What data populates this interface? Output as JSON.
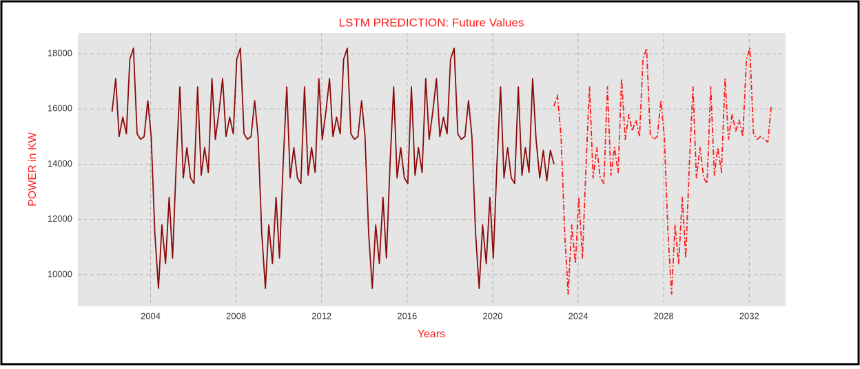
{
  "chart_data": {
    "type": "line",
    "title": "LSTM PREDICTION: Future Values",
    "x_label": "Years",
    "y_label": "POWER in KW",
    "xlim": [
      2000.6,
      2033.7
    ],
    "xticks": [
      2004,
      2008,
      2012,
      2016,
      2020,
      2024,
      2028,
      2032
    ],
    "ylim": [
      8850,
      18750
    ],
    "yticks": [
      10000,
      12000,
      14000,
      16000,
      18000
    ],
    "grid": true,
    "series": [
      {
        "color": "#8b0a0a",
        "dash": "solid",
        "x": [
          2002.2,
          2002.37,
          2002.53,
          2002.7,
          2002.87,
          2003.03,
          2003.2,
          2003.37,
          2003.53,
          2003.7,
          2003.87,
          2004.03,
          2004.2,
          2004.37,
          2004.53,
          2004.7,
          2004.87,
          2005.03,
          2005.2,
          2005.37,
          2005.53,
          2005.7,
          2005.87,
          2006.03,
          2006.2,
          2006.37,
          2006.53,
          2006.7,
          2006.87,
          2007.03,
          2007.2,
          2007.37,
          2007.53,
          2007.7,
          2007.87,
          2008.03,
          2008.2,
          2008.37,
          2008.53,
          2008.7,
          2008.87,
          2009.03,
          2009.2,
          2009.37,
          2009.53,
          2009.7,
          2009.87,
          2010.03,
          2010.2,
          2010.37,
          2010.53,
          2010.7,
          2010.87,
          2011.03,
          2011.2,
          2011.37,
          2011.53,
          2011.7,
          2011.87,
          2012.03,
          2012.2,
          2012.37,
          2012.53,
          2012.7,
          2012.87,
          2013.03,
          2013.2,
          2013.37,
          2013.53,
          2013.7,
          2013.87,
          2014.03,
          2014.2,
          2014.37,
          2014.53,
          2014.7,
          2014.87,
          2015.03,
          2015.2,
          2015.37,
          2015.53,
          2015.7,
          2015.87,
          2016.03,
          2016.2,
          2016.37,
          2016.53,
          2016.7,
          2016.87,
          2017.03,
          2017.2,
          2017.37,
          2017.53,
          2017.7,
          2017.87,
          2018.03,
          2018.2,
          2018.37,
          2018.53,
          2018.7,
          2018.87,
          2019.03,
          2019.2,
          2019.37,
          2019.53,
          2019.7,
          2019.87,
          2020.03,
          2020.2,
          2020.37,
          2020.53,
          2020.7,
          2020.87,
          2021.03,
          2021.2,
          2021.37,
          2021.53,
          2021.7,
          2021.87,
          2022.03,
          2022.2,
          2022.37,
          2022.53,
          2022.7,
          2022.87
        ],
        "values": [
          15900,
          17100,
          15000,
          15700,
          15100,
          17800,
          18200,
          15100,
          14900,
          15000,
          16300,
          15000,
          11500,
          9500,
          11800,
          10400,
          12800,
          10600,
          14000,
          16800,
          13500,
          14600,
          13500,
          13300,
          16800,
          13600,
          14600,
          13700,
          17100,
          14900,
          15900,
          17100,
          15000,
          15700,
          15100,
          17800,
          18200,
          15100,
          14900,
          15000,
          16300,
          15000,
          11500,
          9500,
          11800,
          10400,
          12800,
          10600,
          14000,
          16800,
          13500,
          14600,
          13500,
          13300,
          16800,
          13600,
          14600,
          13700,
          17100,
          14900,
          15900,
          17100,
          15000,
          15700,
          15100,
          17800,
          18200,
          15100,
          14900,
          15000,
          16300,
          15000,
          11500,
          9500,
          11800,
          10400,
          12800,
          10600,
          14000,
          16800,
          13500,
          14600,
          13500,
          13300,
          16800,
          13600,
          14600,
          13700,
          17100,
          14900,
          15900,
          17100,
          15000,
          15700,
          15100,
          17800,
          18200,
          15100,
          14900,
          15000,
          16300,
          15000,
          11500,
          9500,
          11800,
          10400,
          12800,
          10600,
          14000,
          16800,
          13500,
          14600,
          13500,
          13300,
          16800,
          13600,
          14600,
          13700,
          17100,
          14900,
          13500,
          14500,
          13400,
          14500,
          14000
        ]
      },
      {
        "color": "#ff1a1a",
        "dash": "dashdot",
        "x": [
          2022.87,
          2023.03,
          2023.2,
          2023.37,
          2023.53,
          2023.7,
          2023.87,
          2024.03,
          2024.2,
          2024.37,
          2024.53,
          2024.7,
          2024.87,
          2025.03,
          2025.2,
          2025.37,
          2025.53,
          2025.7,
          2025.87,
          2026.03,
          2026.2,
          2026.37,
          2026.53,
          2026.7,
          2026.87,
          2027.03,
          2027.2,
          2027.37,
          2027.53,
          2027.7,
          2027.87,
          2028.03,
          2028.2,
          2028.37,
          2028.53,
          2028.7,
          2028.87,
          2029.03,
          2029.2,
          2029.37,
          2029.53,
          2029.7,
          2029.87,
          2030.03,
          2030.2,
          2030.37,
          2030.53,
          2030.7,
          2030.87,
          2031.03,
          2031.2,
          2031.37,
          2031.53,
          2031.7,
          2031.87,
          2032.03,
          2032.2,
          2032.37,
          2032.53,
          2032.7,
          2032.87,
          2033.03
        ],
        "values": [
          16100,
          16500,
          15000,
          11500,
          9300,
          11800,
          10400,
          12800,
          10600,
          14000,
          16800,
          13500,
          14600,
          13500,
          13300,
          16800,
          13600,
          14600,
          13700,
          17100,
          14900,
          15800,
          15200,
          15600,
          15000,
          17800,
          18200,
          15100,
          14900,
          15000,
          16300,
          15000,
          11500,
          9300,
          11800,
          10400,
          12800,
          10600,
          14000,
          16800,
          13500,
          14600,
          13500,
          13300,
          16800,
          13600,
          14600,
          13700,
          17100,
          14900,
          15800,
          15200,
          15600,
          15000,
          17800,
          18200,
          15100,
          14900,
          15000,
          14900,
          14800,
          16100
        ]
      }
    ]
  }
}
